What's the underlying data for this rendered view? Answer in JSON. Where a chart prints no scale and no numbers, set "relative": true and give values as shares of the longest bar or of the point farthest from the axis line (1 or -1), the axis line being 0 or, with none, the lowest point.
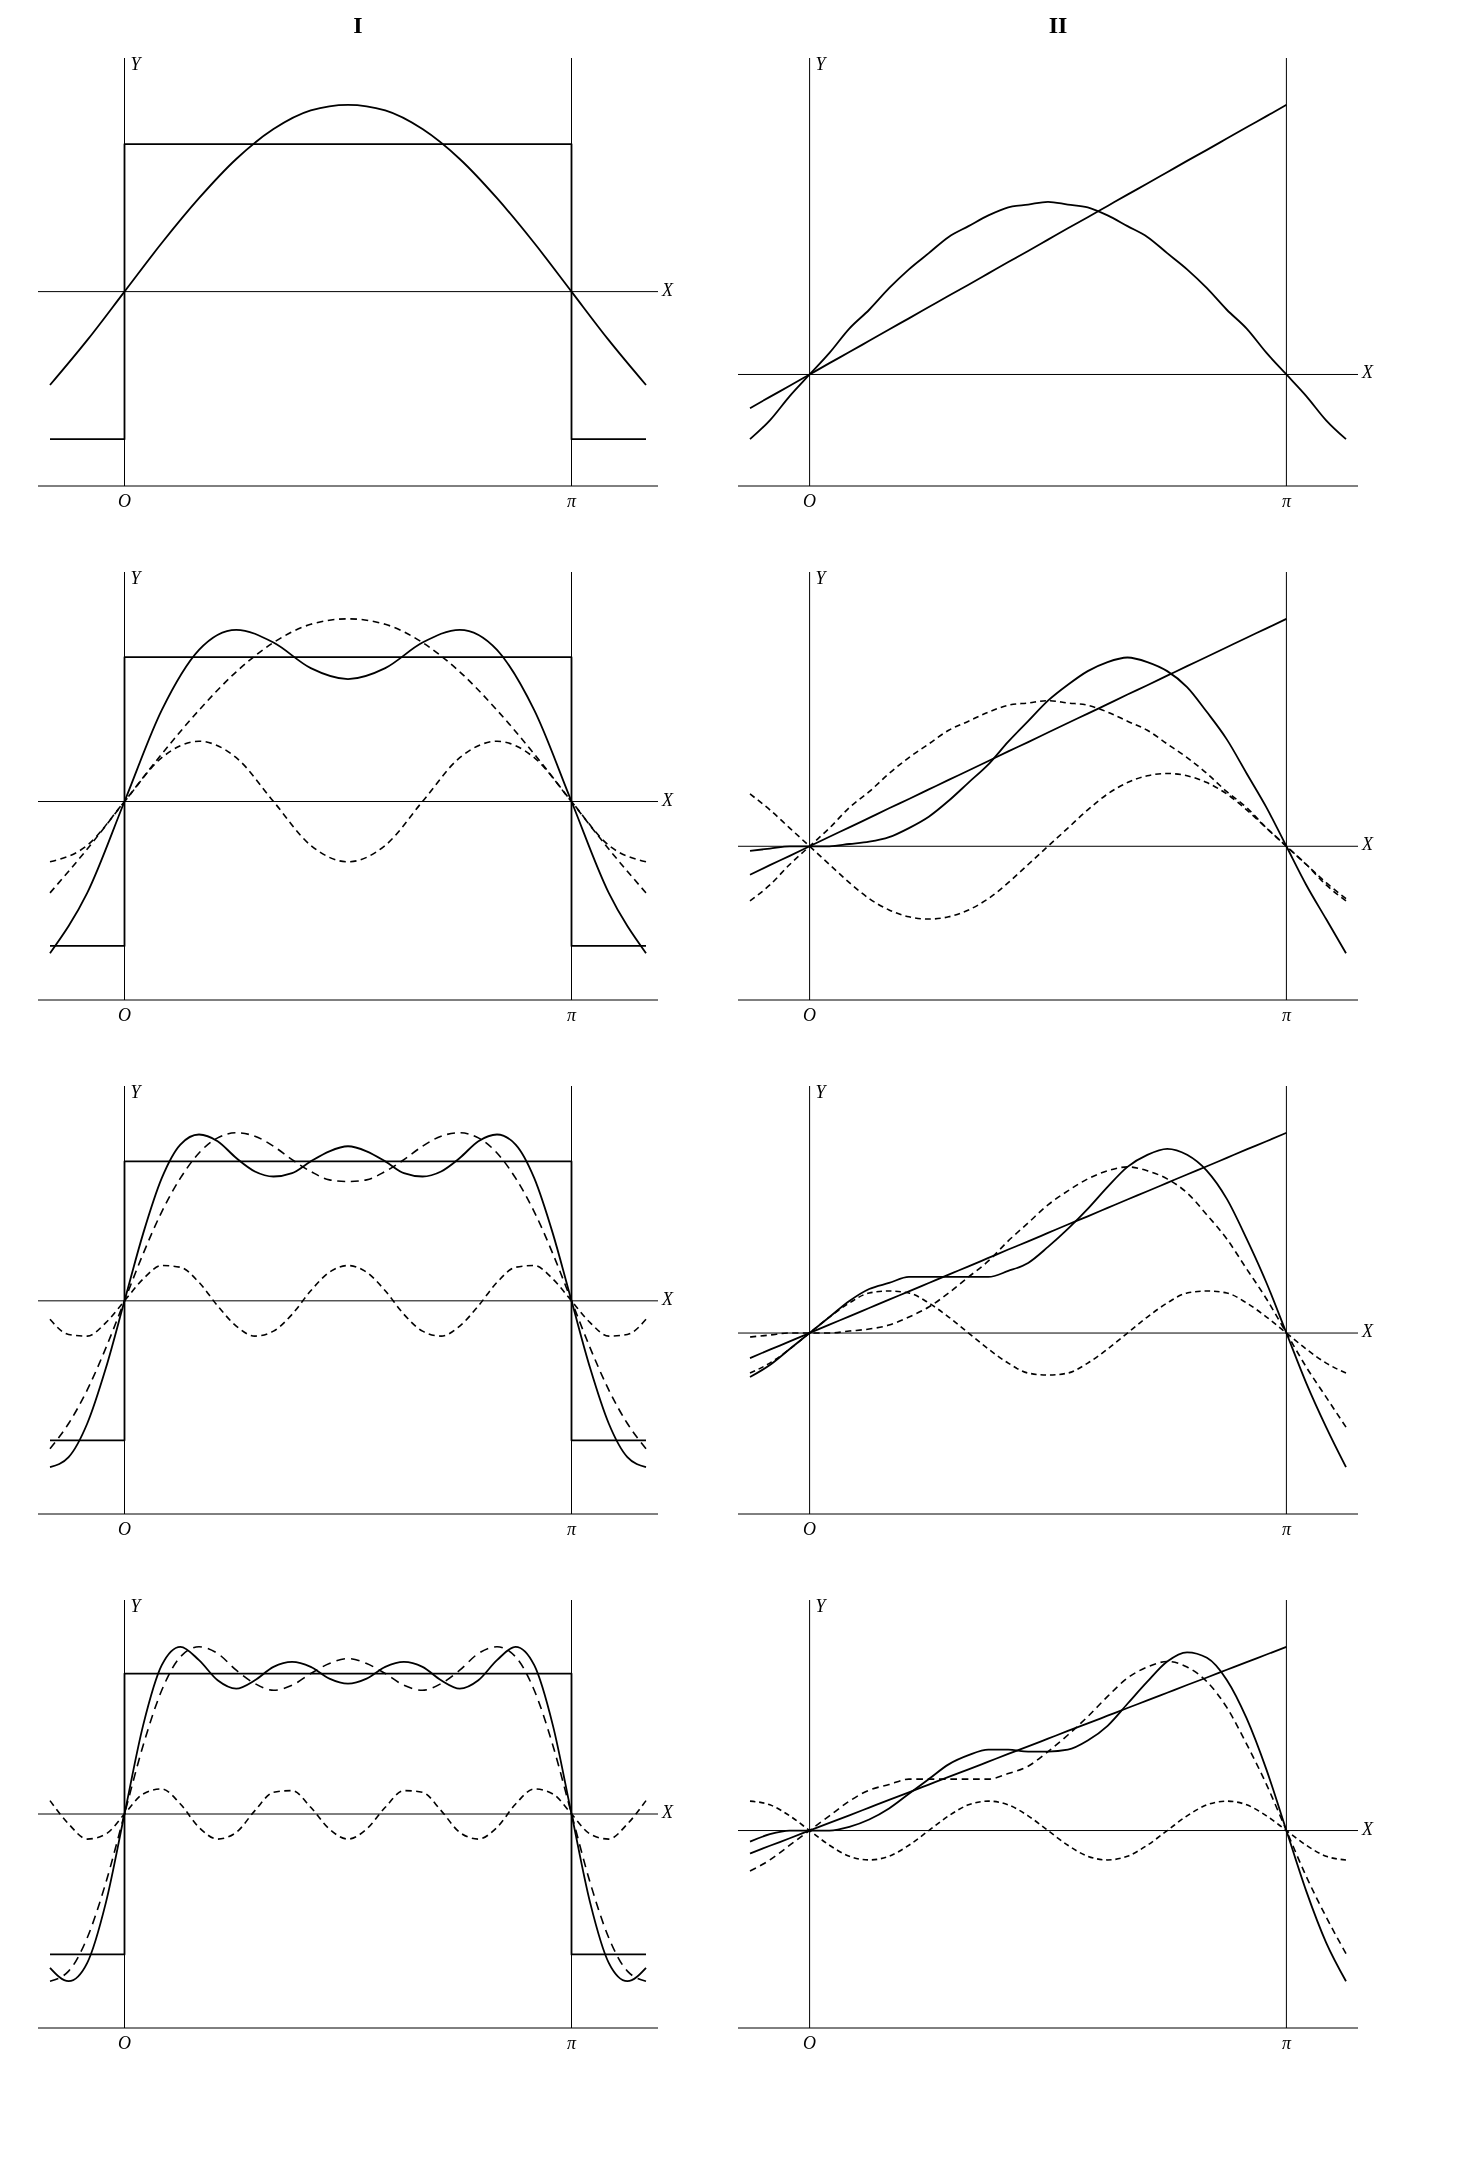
{
  "chart_data": [
    {
      "type": "line",
      "title": "I",
      "xlabel": "X",
      "ylabel": "Y",
      "relative": true,
      "categories": [
        null,
        null,
        "O",
        null,
        null,
        null,
        null,
        null,
        null,
        null,
        null,
        null,
        null,
        null,
        "π",
        null,
        null
      ],
      "ref_lines": [
        {
          "axis": "y",
          "value": 0
        },
        {
          "axis": "x",
          "value": "O"
        },
        {
          "axis": "x",
          "value": "π"
        }
      ],
      "series": [
        {
          "type": "step",
          "color": "#000000",
          "line_style": "solid",
          "values": [
            -0.79,
            -0.79,
            0.79,
            0.79,
            0.79,
            0.79,
            0.79,
            0.79,
            0.79,
            0.79,
            0.79,
            0.79,
            0.79,
            0.79,
            -0.79,
            -0.79,
            -0.79
          ]
        },
        {
          "color": "#000000",
          "line_style": "solid",
          "values": [
            -0.5,
            -0.26,
            0,
            0.26,
            0.5,
            0.71,
            0.87,
            0.97,
            1,
            0.97,
            0.87,
            0.71,
            0.5,
            0.26,
            0,
            -0.26,
            -0.5
          ]
        }
      ]
    },
    {
      "type": "line",
      "xlabel": "X",
      "ylabel": "Y",
      "relative": true,
      "categories": [
        null,
        null,
        "O",
        null,
        null,
        null,
        null,
        null,
        null,
        null,
        null,
        null,
        null,
        null,
        "π",
        null,
        null
      ],
      "ref_lines": [
        {
          "axis": "y",
          "value": 0
        },
        {
          "axis": "x",
          "value": "O"
        },
        {
          "axis": "x",
          "value": "π"
        }
      ],
      "series": [
        {
          "type": "step",
          "color": "#000000",
          "line_style": "solid",
          "values": [
            -0.79,
            -0.79,
            0.79,
            0.79,
            0.79,
            0.79,
            0.79,
            0.79,
            0.79,
            0.79,
            0.79,
            0.79,
            0.79,
            0.79,
            -0.79,
            -0.79,
            -0.79
          ]
        },
        {
          "color": "#000000",
          "line_style": "solid",
          "values": [
            -0.83,
            -0.5,
            0,
            0.5,
            0.83,
            0.94,
            0.87,
            0.73,
            0.67,
            0.73,
            0.87,
            0.94,
            0.83,
            0.5,
            0,
            -0.5,
            -0.83
          ]
        },
        {
          "color": "#000000",
          "line_style": "dashed",
          "values": [
            -0.5,
            -0.26,
            0,
            0.26,
            0.5,
            0.71,
            0.87,
            0.97,
            1,
            0.97,
            0.87,
            0.71,
            0.5,
            0.26,
            0,
            -0.26,
            -0.5
          ]
        },
        {
          "color": "#000000",
          "line_style": "dashed",
          "values": [
            -0.33,
            -0.24,
            0,
            0.24,
            0.33,
            0.24,
            0,
            -0.24,
            -0.33,
            -0.24,
            0,
            0.24,
            0.33,
            0.24,
            0,
            -0.24,
            -0.33
          ]
        }
      ]
    },
    {
      "type": "line",
      "xlabel": "X",
      "ylabel": "Y",
      "relative": true,
      "categories": [
        null,
        null,
        null,
        null,
        "O",
        null,
        null,
        null,
        null,
        null,
        null,
        null,
        null,
        null,
        null,
        null,
        null,
        null,
        null,
        null,
        null,
        null,
        null,
        null,
        null,
        null,
        null,
        null,
        "π",
        null,
        null,
        null,
        null
      ],
      "ref_lines": [
        {
          "axis": "y",
          "value": 0
        },
        {
          "axis": "x",
          "value": "O"
        },
        {
          "axis": "x",
          "value": "π"
        }
      ],
      "series": [
        {
          "type": "step",
          "color": "#000000",
          "line_style": "solid",
          "values": [
            -0.83,
            -0.83,
            -0.83,
            -0.83,
            0.83,
            0.83,
            0.83,
            0.83,
            0.83,
            0.83,
            0.83,
            0.83,
            0.83,
            0.83,
            0.83,
            0.83,
            0.83,
            0.83,
            0.83,
            0.83,
            0.83,
            0.83,
            0.83,
            0.83,
            0.83,
            0.83,
            0.83,
            0.83,
            -0.83,
            -0.83,
            -0.83,
            -0.83,
            -0.83
          ]
        },
        {
          "color": "#000000",
          "line_style": "solid",
          "values": [
            -0.99,
            -0.93,
            -0.73,
            -0.4,
            0,
            0.4,
            0.73,
            0.93,
            0.99,
            0.95,
            0.85,
            0.77,
            0.74,
            0.76,
            0.83,
            0.89,
            0.92,
            0.89,
            0.83,
            0.76,
            0.74,
            0.77,
            0.85,
            0.95,
            0.99,
            0.93,
            0.73,
            0.4,
            0,
            -0.4,
            -0.73,
            -0.93,
            -0.99
          ]
        },
        {
          "color": "#000000",
          "line_style": "dashed",
          "values": [
            -0.88,
            -0.73,
            -0.53,
            -0.28,
            0,
            0.28,
            0.53,
            0.73,
            0.88,
            0.97,
            1,
            0.98,
            0.92,
            0.84,
            0.77,
            0.72,
            0.71,
            0.72,
            0.77,
            0.84,
            0.92,
            0.98,
            1,
            0.97,
            0.88,
            0.73,
            0.53,
            0.28,
            0,
            -0.28,
            -0.53,
            -0.73,
            -0.88
          ]
        },
        {
          "color": "#000000",
          "line_style": "dashed",
          "values": [
            -0.11,
            -0.2,
            -0.21,
            -0.13,
            0,
            0.13,
            0.21,
            0.2,
            0.11,
            -0.03,
            -0.15,
            -0.21,
            -0.18,
            -0.08,
            0.06,
            0.17,
            0.21,
            0.17,
            0.06,
            -0.08,
            -0.18,
            -0.21,
            -0.15,
            -0.03,
            0.11,
            0.2,
            0.21,
            0.13,
            0,
            -0.13,
            -0.21,
            -0.2,
            -0.11
          ]
        }
      ]
    },
    {
      "type": "line",
      "xlabel": "X",
      "ylabel": "Y",
      "relative": true,
      "categories": [
        null,
        null,
        null,
        null,
        "O",
        null,
        null,
        null,
        null,
        null,
        null,
        null,
        null,
        null,
        null,
        null,
        null,
        null,
        null,
        null,
        null,
        null,
        null,
        null,
        null,
        null,
        null,
        null,
        "π",
        null,
        null,
        null,
        null
      ],
      "ref_lines": [
        {
          "axis": "y",
          "value": 0
        },
        {
          "axis": "x",
          "value": "O"
        },
        {
          "axis": "x",
          "value": "π"
        }
      ],
      "series": [
        {
          "type": "step",
          "color": "#000000",
          "line_style": "solid",
          "values": [
            -0.84,
            -0.84,
            -0.84,
            -0.84,
            0.84,
            0.84,
            0.84,
            0.84,
            0.84,
            0.84,
            0.84,
            0.84,
            0.84,
            0.84,
            0.84,
            0.84,
            0.84,
            0.84,
            0.84,
            0.84,
            0.84,
            0.84,
            0.84,
            0.84,
            0.84,
            0.84,
            0.84,
            0.84,
            -0.84,
            -0.84,
            -0.84,
            -0.84,
            -0.84
          ]
        },
        {
          "color": "#000000",
          "line_style": "solid",
          "values": [
            -0.92,
            -1,
            -0.89,
            -0.53,
            0,
            0.53,
            0.89,
            1,
            0.92,
            0.8,
            0.75,
            0.8,
            0.88,
            0.91,
            0.88,
            0.81,
            0.78,
            0.81,
            0.88,
            0.91,
            0.88,
            0.8,
            0.75,
            0.8,
            0.92,
            1,
            0.89,
            0.53,
            0,
            -0.53,
            -0.89,
            -1,
            -0.92
          ]
        },
        {
          "color": "#000000",
          "line_style": "dashed",
          "values": [
            -1,
            -0.94,
            -0.74,
            -0.41,
            0,
            0.41,
            0.74,
            0.94,
            1,
            0.96,
            0.86,
            0.78,
            0.74,
            0.77,
            0.84,
            0.9,
            0.93,
            0.9,
            0.84,
            0.77,
            0.74,
            0.78,
            0.86,
            0.96,
            1,
            0.94,
            0.74,
            0.41,
            0,
            -0.41,
            -0.74,
            -0.94,
            -1
          ]
        },
        {
          "color": "#000000",
          "line_style": "dashed",
          "values": [
            0.08,
            -0.06,
            -0.15,
            -0.12,
            0,
            0.12,
            0.15,
            0.06,
            -0.08,
            -0.15,
            -0.11,
            0.02,
            0.13,
            0.14,
            0.04,
            -0.09,
            -0.15,
            -0.09,
            0.04,
            0.14,
            0.13,
            0.02,
            -0.11,
            -0.15,
            -0.08,
            0.06,
            0.15,
            0.12,
            0,
            -0.12,
            -0.15,
            -0.06,
            0.08
          ]
        }
      ]
    },
    {
      "type": "line",
      "title": "II",
      "xlabel": "X",
      "ylabel": "Y",
      "relative": true,
      "categories": [
        null,
        null,
        null,
        "O",
        null,
        null,
        null,
        null,
        null,
        null,
        null,
        null,
        null,
        null,
        null,
        null,
        null,
        null,
        null,
        null,
        null,
        null,
        null,
        null,
        null,
        null,
        null,
        "π",
        null,
        null,
        null
      ],
      "ref_lines": [
        {
          "axis": "y",
          "value": 0
        },
        {
          "axis": "x",
          "value": "O"
        },
        {
          "axis": "x",
          "value": "π"
        }
      ],
      "series": [
        {
          "color": "#000000",
          "line_style": "solid",
          "values": [
            -0.125,
            -0.083,
            -0.042,
            0,
            0.042,
            0.083,
            0.125,
            0.167,
            0.208,
            0.25,
            0.292,
            0.333,
            0.375,
            0.417,
            0.458,
            0.5,
            0.542,
            0.583,
            0.625,
            0.667,
            0.708,
            0.75,
            0.792,
            0.833,
            0.875,
            0.917,
            0.958,
            1,
            null,
            null,
            null
          ]
        },
        {
          "color": "#000000",
          "line_style": "solid",
          "values": [
            -0.24,
            -0.17,
            -0.08,
            0,
            0.08,
            0.17,
            0.24,
            0.32,
            0.39,
            0.45,
            0.51,
            0.55,
            0.59,
            0.62,
            0.63,
            0.64,
            0.63,
            0.62,
            0.59,
            0.55,
            0.51,
            0.45,
            0.39,
            0.32,
            0.24,
            0.17,
            0.08,
            0,
            -0.08,
            -0.17,
            -0.24
          ]
        }
      ]
    },
    {
      "type": "line",
      "xlabel": "X",
      "ylabel": "Y",
      "relative": true,
      "categories": [
        null,
        null,
        null,
        "O",
        null,
        null,
        null,
        null,
        null,
        null,
        null,
        null,
        null,
        null,
        null,
        null,
        null,
        null,
        null,
        null,
        null,
        null,
        null,
        null,
        null,
        null,
        null,
        "π",
        null,
        null,
        null
      ],
      "ref_lines": [
        {
          "axis": "y",
          "value": 0
        },
        {
          "axis": "x",
          "value": "O"
        },
        {
          "axis": "x",
          "value": "π"
        }
      ],
      "series": [
        {
          "color": "#000000",
          "line_style": "solid",
          "values": [
            -0.125,
            -0.083,
            -0.042,
            0,
            0.042,
            0.083,
            0.125,
            0.167,
            0.208,
            0.25,
            0.292,
            0.333,
            0.375,
            0.417,
            0.458,
            0.5,
            0.542,
            0.583,
            0.625,
            0.667,
            0.708,
            0.75,
            0.792,
            0.833,
            0.875,
            0.917,
            0.958,
            1,
            null,
            null,
            null
          ]
        },
        {
          "color": "#000000",
          "line_style": "solid",
          "values": [
            -0.02,
            -0.01,
            0,
            0,
            0,
            0.01,
            0.02,
            0.04,
            0.08,
            0.13,
            0.2,
            0.28,
            0.36,
            0.46,
            0.55,
            0.64,
            0.71,
            0.77,
            0.81,
            0.83,
            0.81,
            0.77,
            0.7,
            0.59,
            0.47,
            0.32,
            0.17,
            0,
            -0.17,
            -0.32,
            -0.47
          ]
        },
        {
          "color": "#000000",
          "line_style": "dashed",
          "values": [
            -0.24,
            -0.17,
            -0.08,
            0,
            0.08,
            0.17,
            0.24,
            0.32,
            0.39,
            0.45,
            0.51,
            0.55,
            0.59,
            0.62,
            0.63,
            0.64,
            0.63,
            0.62,
            0.59,
            0.55,
            0.51,
            0.45,
            0.39,
            0.32,
            0.24,
            0.17,
            0.08,
            0,
            -0.08,
            -0.17,
            -0.24
          ]
        },
        {
          "color": "#000000",
          "line_style": "dashed",
          "values": [
            0.23,
            0.16,
            0.08,
            0,
            -0.08,
            -0.16,
            -0.23,
            -0.28,
            -0.31,
            -0.32,
            -0.31,
            -0.28,
            -0.23,
            -0.16,
            -0.08,
            0,
            0.08,
            0.16,
            0.23,
            0.28,
            0.31,
            0.32,
            0.31,
            0.28,
            0.23,
            0.16,
            0.08,
            0,
            -0.08,
            -0.16,
            -0.23
          ]
        }
      ]
    },
    {
      "type": "line",
      "xlabel": "X",
      "ylabel": "Y",
      "relative": true,
      "categories": [
        null,
        null,
        null,
        "O",
        null,
        null,
        null,
        null,
        null,
        null,
        null,
        null,
        null,
        null,
        null,
        null,
        null,
        null,
        null,
        null,
        null,
        null,
        null,
        null,
        null,
        null,
        null,
        "π",
        null,
        null,
        null
      ],
      "ref_lines": [
        {
          "axis": "y",
          "value": 0
        },
        {
          "axis": "x",
          "value": "O"
        },
        {
          "axis": "x",
          "value": "π"
        }
      ],
      "series": [
        {
          "color": "#000000",
          "line_style": "solid",
          "values": [
            -0.125,
            -0.083,
            -0.042,
            0,
            0.042,
            0.083,
            0.125,
            0.167,
            0.208,
            0.25,
            0.292,
            0.333,
            0.375,
            0.417,
            0.458,
            0.5,
            0.542,
            0.583,
            0.625,
            0.667,
            0.708,
            0.75,
            0.792,
            0.833,
            0.875,
            0.917,
            0.958,
            1,
            null,
            null,
            null
          ]
        },
        {
          "color": "#000000",
          "line_style": "solid",
          "values": [
            -0.22,
            -0.16,
            -0.08,
            0,
            0.08,
            0.16,
            0.22,
            0.25,
            0.28,
            0.28,
            0.28,
            0.28,
            0.28,
            0.31,
            0.35,
            0.43,
            0.52,
            0.62,
            0.73,
            0.83,
            0.89,
            0.92,
            0.89,
            0.81,
            0.67,
            0.47,
            0.25,
            0,
            -0.25,
            -0.47,
            -0.67
          ]
        },
        {
          "color": "#000000",
          "line_style": "dashed",
          "values": [
            -0.02,
            -0.01,
            0,
            0,
            0,
            0.01,
            0.02,
            0.04,
            0.08,
            0.13,
            0.2,
            0.28,
            0.36,
            0.46,
            0.55,
            0.64,
            0.71,
            0.77,
            0.81,
            0.83,
            0.81,
            0.77,
            0.7,
            0.59,
            0.47,
            0.32,
            0.17,
            0,
            -0.17,
            -0.32,
            -0.47
          ]
        },
        {
          "color": "#000000",
          "line_style": "dashed",
          "values": [
            -0.2,
            -0.15,
            -0.08,
            0,
            0.08,
            0.15,
            0.2,
            0.21,
            0.2,
            0.15,
            0.08,
            0,
            -0.08,
            -0.15,
            -0.2,
            -0.21,
            -0.2,
            -0.15,
            -0.08,
            0,
            0.08,
            0.15,
            0.2,
            0.21,
            0.2,
            0.15,
            0.08,
            0,
            -0.08,
            -0.15,
            -0.2
          ]
        }
      ]
    },
    {
      "type": "line",
      "xlabel": "X",
      "ylabel": "Y",
      "relative": true,
      "categories": [
        null,
        null,
        null,
        "O",
        null,
        null,
        null,
        null,
        null,
        null,
        null,
        null,
        null,
        null,
        null,
        null,
        null,
        null,
        null,
        null,
        null,
        null,
        null,
        null,
        null,
        null,
        null,
        "π",
        null,
        null,
        null
      ],
      "ref_lines": [
        {
          "axis": "y",
          "value": 0
        },
        {
          "axis": "x",
          "value": "O"
        },
        {
          "axis": "x",
          "value": "π"
        }
      ],
      "series": [
        {
          "color": "#000000",
          "line_style": "solid",
          "values": [
            -0.125,
            -0.083,
            -0.042,
            0,
            0.042,
            0.083,
            0.125,
            0.167,
            0.208,
            0.25,
            0.292,
            0.333,
            0.375,
            0.417,
            0.458,
            0.5,
            0.542,
            0.583,
            0.625,
            0.667,
            0.708,
            0.75,
            0.792,
            0.833,
            0.875,
            0.917,
            0.958,
            1,
            null,
            null,
            null
          ]
        },
        {
          "color": "#000000",
          "line_style": "solid",
          "values": [
            -0.06,
            -0.02,
            0,
            0,
            0,
            0.02,
            0.06,
            0.12,
            0.2,
            0.28,
            0.36,
            0.41,
            0.44,
            0.44,
            0.43,
            0.43,
            0.44,
            0.49,
            0.57,
            0.69,
            0.81,
            0.92,
            0.97,
            0.94,
            0.82,
            0.61,
            0.33,
            0,
            -0.33,
            -0.61,
            -0.82
          ]
        },
        {
          "color": "#000000",
          "line_style": "dashed",
          "values": [
            -0.22,
            -0.16,
            -0.08,
            0,
            0.08,
            0.16,
            0.22,
            0.25,
            0.28,
            0.28,
            0.28,
            0.28,
            0.28,
            0.31,
            0.35,
            0.43,
            0.52,
            0.62,
            0.73,
            0.83,
            0.89,
            0.92,
            0.89,
            0.81,
            0.67,
            0.47,
            0.25,
            0,
            -0.25,
            -0.47,
            -0.67
          ]
        },
        {
          "color": "#000000",
          "line_style": "dashed",
          "values": [
            0.16,
            0.14,
            0.08,
            0,
            -0.08,
            -0.14,
            -0.16,
            -0.14,
            -0.08,
            0,
            0.08,
            0.14,
            0.16,
            0.14,
            0.08,
            0,
            -0.08,
            -0.14,
            -0.16,
            -0.14,
            -0.08,
            0,
            0.08,
            0.14,
            0.16,
            0.14,
            0.08,
            0,
            -0.08,
            -0.14,
            -0.16
          ]
        }
      ]
    }
  ]
}
